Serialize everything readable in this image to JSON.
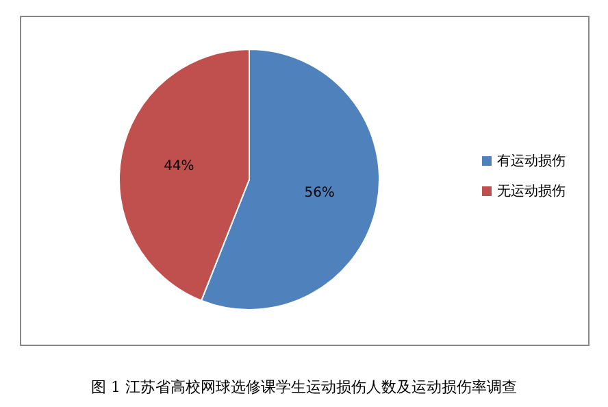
{
  "chart_data": {
    "type": "pie",
    "categories": [
      "有运动损伤",
      "无运动损伤"
    ],
    "values": [
      56,
      44
    ],
    "colors": [
      "#4f81bd",
      "#c0504d"
    ],
    "value_labels": [
      "56%",
      "44%"
    ],
    "legend": "right",
    "annotations": [
      "图 1    江苏省高校网球选修课学生运动损伤人数及运动损伤率调查"
    ]
  }
}
